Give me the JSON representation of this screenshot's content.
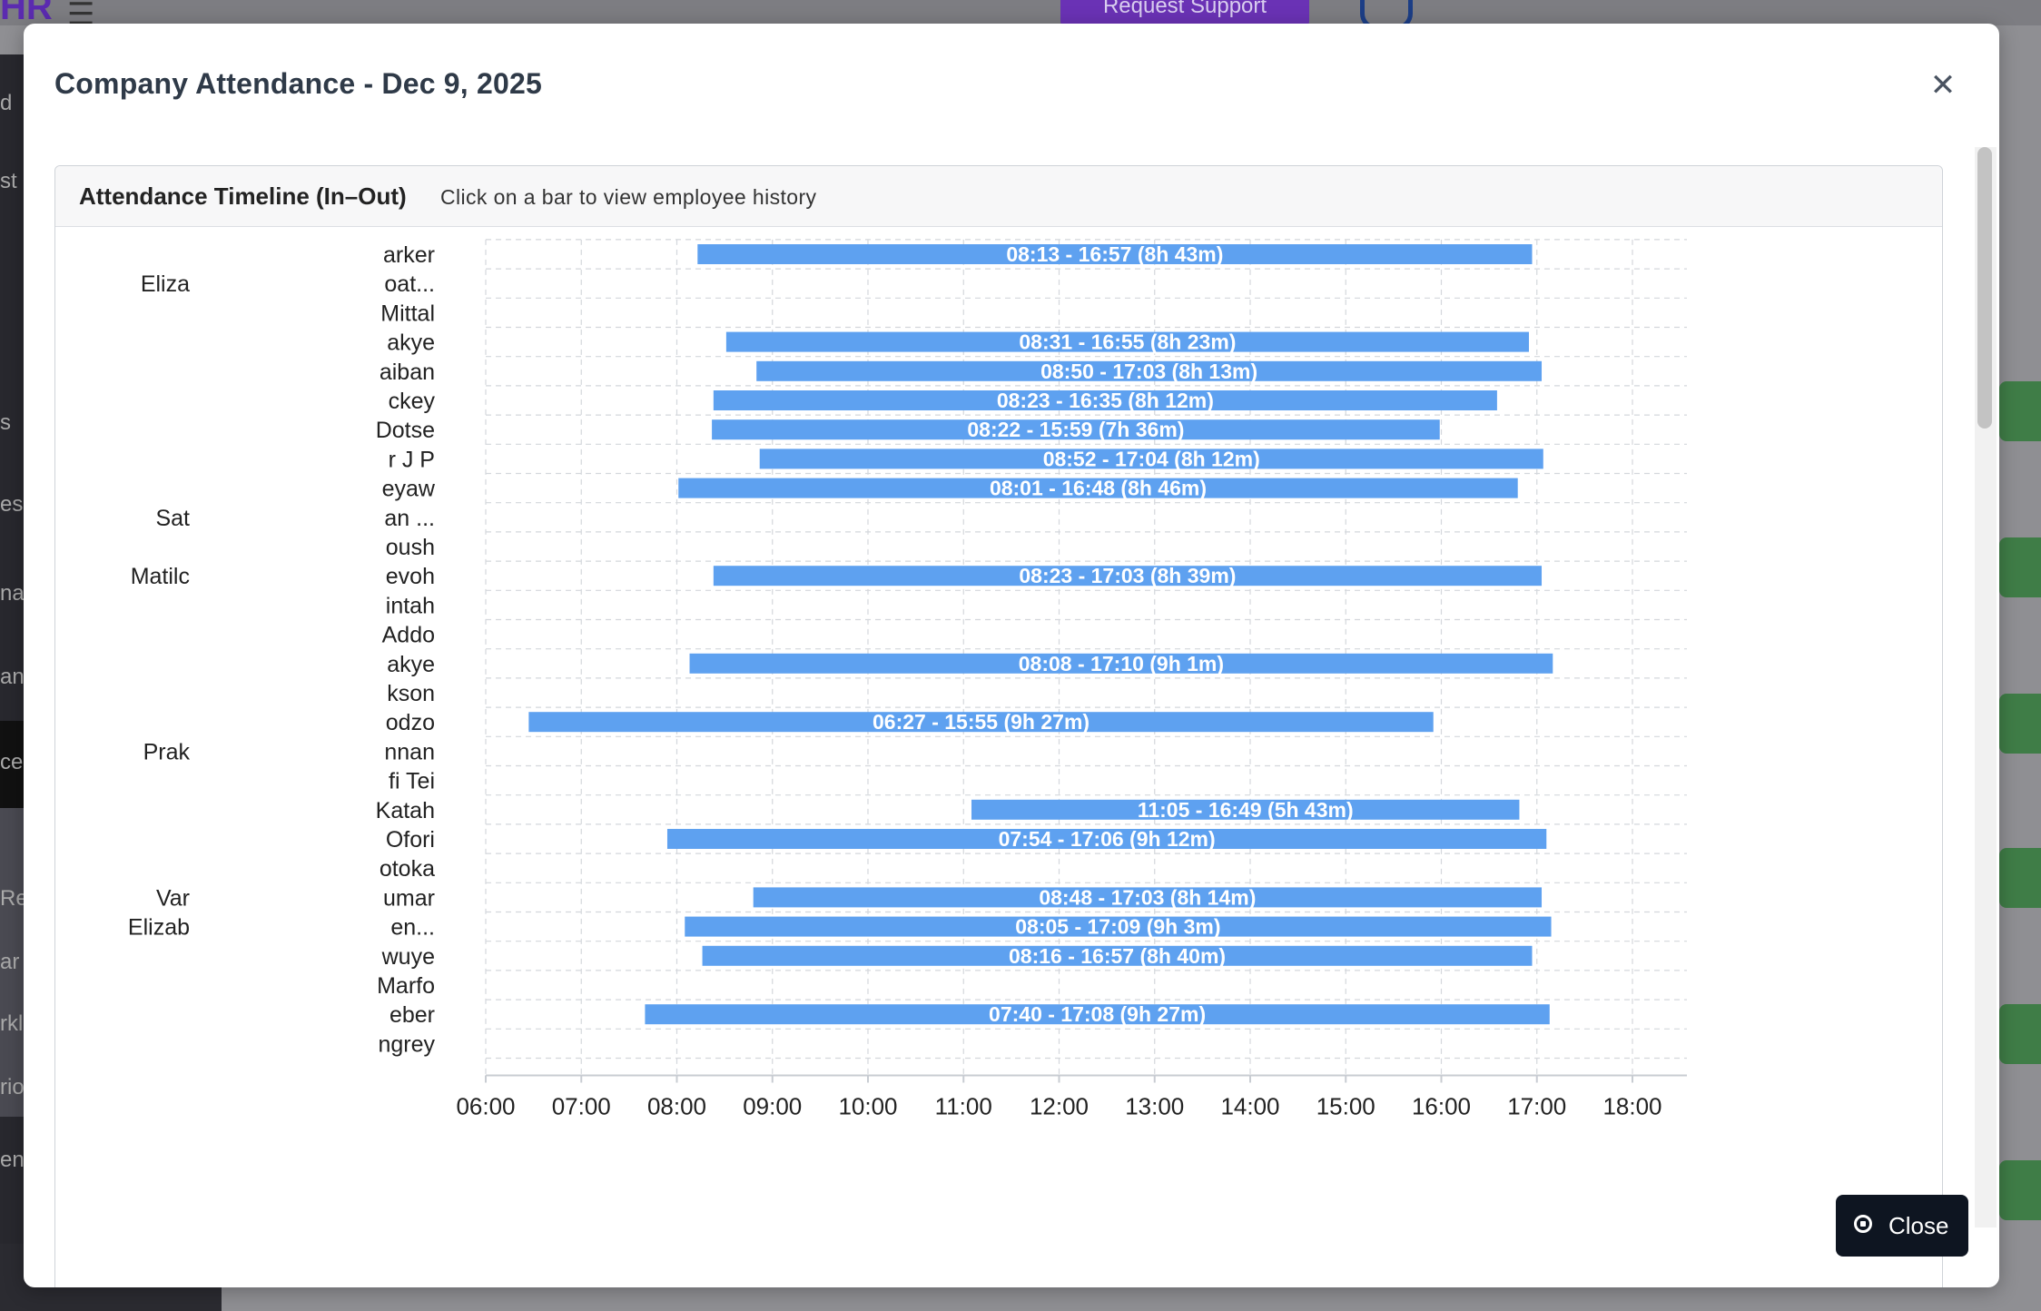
{
  "background": {
    "logo_text": "HR",
    "support_label": "Request Support",
    "sidebar_fragments": [
      "d",
      "st",
      "s",
      "es",
      "na",
      "an",
      "ce",
      "Re",
      "ar",
      "rkl",
      "rio",
      "ent"
    ]
  },
  "modal": {
    "title": "Company Attendance - Dec 9, 2025",
    "close_icon": "close-icon",
    "close_button_label": "Close",
    "close_button_icon": "stop-circle-icon"
  },
  "card": {
    "title": "Attendance Timeline (In–Out)",
    "subtitle": "Click on a bar to view employee history"
  },
  "colors": {
    "bar": "#5ea1f0",
    "bar_label": "#ffffff",
    "grid": "#d4d7dc",
    "axis_text": "#222222"
  },
  "chart_data": {
    "type": "bar",
    "orientation": "horizontal",
    "x_axis": {
      "min": "06:00",
      "max": "18:00",
      "ticks": [
        "06:00",
        "07:00",
        "08:00",
        "09:00",
        "10:00",
        "11:00",
        "12:00",
        "13:00",
        "14:00",
        "15:00",
        "16:00",
        "17:00",
        "18:00"
      ]
    },
    "grid": true,
    "rows": [
      {
        "label": "arker",
        "in": "08:13",
        "out": "16:57",
        "text": "08:13 - 16:57 (8h 43m)"
      },
      {
        "label": "oat...",
        "in": null,
        "out": null,
        "text": ""
      },
      {
        "label": "Mittal",
        "in": null,
        "out": null,
        "text": ""
      },
      {
        "label": "akye",
        "in": "08:31",
        "out": "16:55",
        "text": "08:31 - 16:55 (8h 23m)"
      },
      {
        "label": "aiban",
        "in": "08:50",
        "out": "17:03",
        "text": "08:50 - 17:03 (8h 13m)"
      },
      {
        "label": "ckey",
        "in": "08:23",
        "out": "16:35",
        "text": "08:23 - 16:35 (8h 12m)"
      },
      {
        "label": "Dotse",
        "in": "08:22",
        "out": "15:59",
        "text": "08:22 - 15:59 (7h 36m)"
      },
      {
        "label": "r J P",
        "in": "08:52",
        "out": "17:04",
        "text": "08:52 - 17:04 (8h 12m)"
      },
      {
        "label": "eyaw",
        "in": "08:01",
        "out": "16:48",
        "text": "08:01 - 16:48 (8h 46m)"
      },
      {
        "label": "an ...",
        "in": null,
        "out": null,
        "text": ""
      },
      {
        "label": "oush",
        "in": null,
        "out": null,
        "text": ""
      },
      {
        "label": "evoh",
        "in": "08:23",
        "out": "17:03",
        "text": "08:23 - 17:03 (8h 39m)"
      },
      {
        "label": "intah",
        "in": null,
        "out": null,
        "text": ""
      },
      {
        "label": "Addo",
        "in": null,
        "out": null,
        "text": ""
      },
      {
        "label": "akye",
        "in": "08:08",
        "out": "17:10",
        "text": "08:08 - 17:10 (9h 1m)"
      },
      {
        "label": "kson",
        "in": null,
        "out": null,
        "text": ""
      },
      {
        "label": "odzo",
        "in": "06:27",
        "out": "15:55",
        "text": "06:27 - 15:55 (9h 27m)"
      },
      {
        "label": "nnan",
        "in": null,
        "out": null,
        "text": ""
      },
      {
        "label": "fi Tei",
        "in": null,
        "out": null,
        "text": ""
      },
      {
        "label": "Katah",
        "in": "11:05",
        "out": "16:49",
        "text": "11:05 - 16:49 (5h 43m)"
      },
      {
        "label": "Ofori",
        "in": "07:54",
        "out": "17:06",
        "text": "07:54 - 17:06 (9h 12m)"
      },
      {
        "label": "otoka",
        "in": null,
        "out": null,
        "text": ""
      },
      {
        "label": "umar",
        "in": "08:48",
        "out": "17:03",
        "text": "08:48 - 17:03 (8h 14m)"
      },
      {
        "label": "en...",
        "in": "08:05",
        "out": "17:09",
        "text": "08:05 - 17:09 (9h 3m)"
      },
      {
        "label": "wuye",
        "in": "08:16",
        "out": "16:57",
        "text": "08:16 - 16:57 (8h 40m)"
      },
      {
        "label": "Marfo",
        "in": null,
        "out": null,
        "text": ""
      },
      {
        "label": "eber",
        "in": "07:40",
        "out": "17:08",
        "text": "07:40 - 17:08 (9h 27m)"
      },
      {
        "label": "ngrey",
        "in": null,
        "out": null,
        "text": ""
      }
    ],
    "stray_labels": [
      {
        "text": "Eliza",
        "row": 1
      },
      {
        "text": "Sat",
        "row": 9
      },
      {
        "text": "Matilc",
        "row": 11
      },
      {
        "text": "Prak",
        "row": 17
      },
      {
        "text": "Var",
        "row": 22
      },
      {
        "text": "Elizab",
        "row": 23
      }
    ]
  }
}
